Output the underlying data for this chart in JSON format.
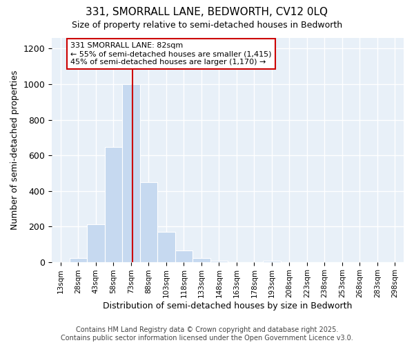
{
  "title1": "331, SMORRALL LANE, BEDWORTH, CV12 0LQ",
  "title2": "Size of property relative to semi-detached houses in Bedworth",
  "xlabel": "Distribution of semi-detached houses by size in Bedworth",
  "ylabel": "Number of semi-detached properties",
  "bin_edges": [
    13,
    28,
    43,
    58,
    73,
    88,
    103,
    118,
    133,
    148,
    163,
    178,
    193,
    208,
    223,
    238,
    253,
    268,
    283,
    298,
    313
  ],
  "counts": [
    0,
    20,
    210,
    645,
    1000,
    450,
    170,
    65,
    20,
    5,
    0,
    0,
    5,
    0,
    0,
    0,
    0,
    0,
    0,
    0
  ],
  "property_size": 82,
  "bar_color": "#c6d9f0",
  "red_line_color": "#cc0000",
  "annotation_title": "331 SMORRALL LANE: 82sqm",
  "annotation_line1": "← 55% of semi-detached houses are smaller (1,415)",
  "annotation_line2": "45% of semi-detached houses are larger (1,170) →",
  "ylim": [
    0,
    1260
  ],
  "yticks": [
    0,
    200,
    400,
    600,
    800,
    1000,
    1200
  ],
  "footer1": "Contains HM Land Registry data © Crown copyright and database right 2025.",
  "footer2": "Contains public sector information licensed under the Open Government Licence v3.0.",
  "background_color": "#ffffff",
  "plot_background": "#e8f0f8"
}
